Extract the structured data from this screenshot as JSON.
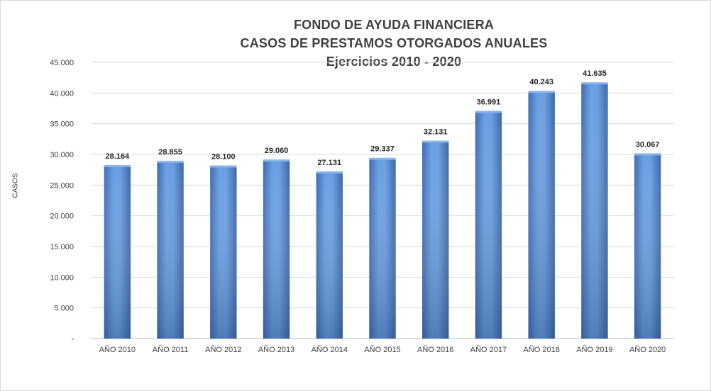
{
  "chart_data": {
    "type": "bar",
    "title": "FONDO DE AYUDA FINANCIERA",
    "subtitle": "CASOS DE PRESTAMOS  OTORGADOS  ANUALES",
    "subtitle2": "Ejercicios  2010 - 2020",
    "xlabel": "",
    "ylabel": "CASOS",
    "categories": [
      "AÑO 2010",
      "AÑO 2011",
      "AÑO 2012",
      "AÑO 2013",
      "AÑO 2014",
      "AÑO 2015",
      "AÑO 2016",
      "AÑO 2017",
      "AÑO 2018",
      "AÑO 2019",
      "AÑO 2020"
    ],
    "values": [
      28164,
      28855,
      28100,
      29060,
      27131,
      29337,
      32131,
      36991,
      40243,
      41635,
      30067
    ],
    "value_labels": [
      "28.164",
      "28.855",
      "28.100",
      "29.060",
      "27.131",
      "29.337",
      "32.131",
      "36.991",
      "40.243",
      "41.635",
      "30.067"
    ],
    "ylim": [
      0,
      45000
    ],
    "yticks": [
      0,
      5000,
      10000,
      15000,
      20000,
      25000,
      30000,
      35000,
      40000,
      45000
    ],
    "ytick_labels": [
      "-",
      "5.000",
      "10.000",
      "15.000",
      "20.000",
      "25.000",
      "30.000",
      "35.000",
      "40.000",
      "45.000"
    ],
    "grid": true,
    "legend": "none",
    "bar_color": "#5b8fd4"
  }
}
